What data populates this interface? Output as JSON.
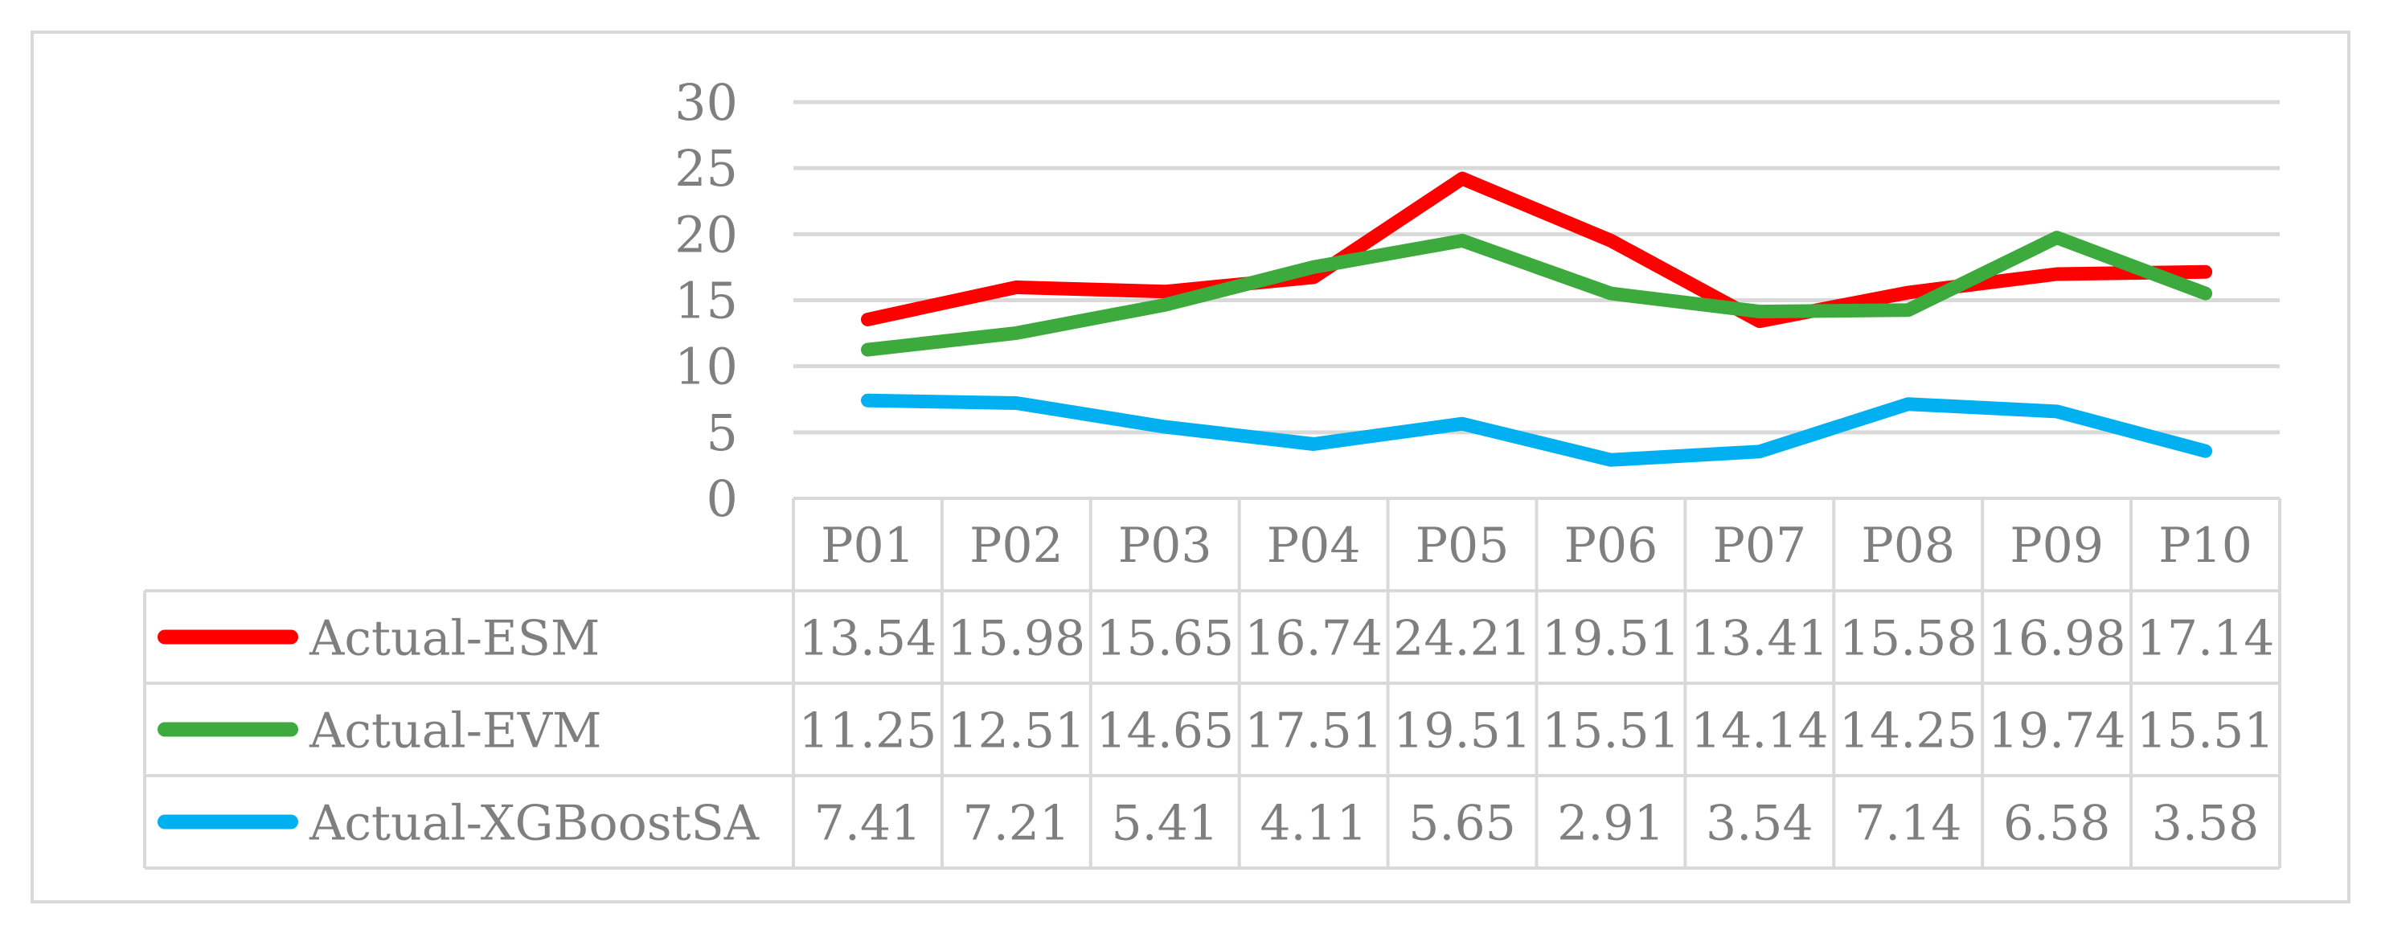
{
  "chart_data": {
    "type": "line",
    "title": "",
    "xlabel": "",
    "ylabel": "",
    "ylim": [
      0,
      30
    ],
    "yticks": [
      0,
      5,
      10,
      15,
      20,
      25,
      30
    ],
    "grid": true,
    "legend": "data-table",
    "categories": [
      "P01",
      "P02",
      "P03",
      "P04",
      "P05",
      "P06",
      "P07",
      "P08",
      "P09",
      "P10"
    ],
    "series": [
      {
        "name": "Actual-ESM",
        "color": "#ff0000",
        "values": [
          13.54,
          15.98,
          15.65,
          16.74,
          24.21,
          19.51,
          13.41,
          15.58,
          16.98,
          17.14
        ],
        "labels": [
          "13.54",
          "15.98",
          "15.65",
          "16.74",
          "24.21",
          "19.51",
          "13.41",
          "15.58",
          "16.98",
          "17.14"
        ]
      },
      {
        "name": "Actual-EVM",
        "color": "#3daa3d",
        "values": [
          11.25,
          12.51,
          14.65,
          17.51,
          19.51,
          15.51,
          14.14,
          14.25,
          19.74,
          15.51
        ],
        "labels": [
          "11.25",
          "12.51",
          "14.65",
          "17.51",
          "19.51",
          "15.51",
          "14.14",
          "14.25",
          "19.74",
          "15.51"
        ]
      },
      {
        "name": "Actual-XGBoostSA",
        "color": "#00b0f0",
        "values": [
          7.41,
          7.21,
          5.41,
          4.11,
          5.65,
          2.91,
          3.54,
          7.14,
          6.58,
          3.58
        ],
        "labels": [
          "7.41",
          "7.21",
          "5.41",
          "4.11",
          "5.65",
          "2.91",
          "3.54",
          "7.14",
          "6.58",
          "3.58"
        ]
      }
    ]
  }
}
